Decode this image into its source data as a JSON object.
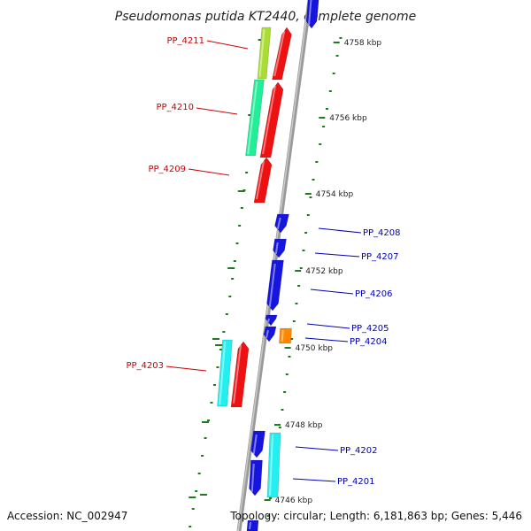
{
  "title": "Pseudomonas putida KT2440, complete genome",
  "accession": "Accession: NC_002947",
  "topology": "Topology: circular; Length: 6,181,863 bp; Genes: 5,446",
  "colors": {
    "backbone": "#8c8c8c",
    "tick": "#1e7b1e",
    "forward_label": "#cc0000",
    "reverse_label": "#0000bb",
    "red": "#ee1111",
    "blue": "#1515dd",
    "cyan": "#22f0f0",
    "green": "#22ee99",
    "yellowgreen": "#aadd33",
    "orange": "#ff8800"
  },
  "ticks": [
    {
      "label": "4758 kbp"
    },
    {
      "label": "4756 kbp"
    },
    {
      "label": "4754 kbp"
    },
    {
      "label": "4752 kbp"
    },
    {
      "label": "4750 kbp"
    },
    {
      "label": "4748 kbp"
    },
    {
      "label": "4746 kbp"
    }
  ],
  "genes": [
    {
      "id": "PP_4211",
      "strand": "forward",
      "color": "yellowgreen"
    },
    {
      "id": "PP_4210",
      "strand": "forward",
      "color": "green"
    },
    {
      "id": "PP_4209",
      "strand": "forward",
      "color": "red"
    },
    {
      "id": "PP_4208",
      "strand": "reverse",
      "color": "blue"
    },
    {
      "id": "PP_4207",
      "strand": "reverse",
      "color": "blue"
    },
    {
      "id": "PP_4206",
      "strand": "reverse",
      "color": "blue"
    },
    {
      "id": "PP_4205",
      "strand": "reverse",
      "color": "blue"
    },
    {
      "id": "PP_4204",
      "strand": "reverse",
      "color": "orange"
    },
    {
      "id": "PP_4203",
      "strand": "forward",
      "color": "cyan"
    },
    {
      "id": "PP_4202",
      "strand": "reverse",
      "color": "blue"
    },
    {
      "id": "PP_4201",
      "strand": "reverse",
      "color": "blue"
    }
  ]
}
